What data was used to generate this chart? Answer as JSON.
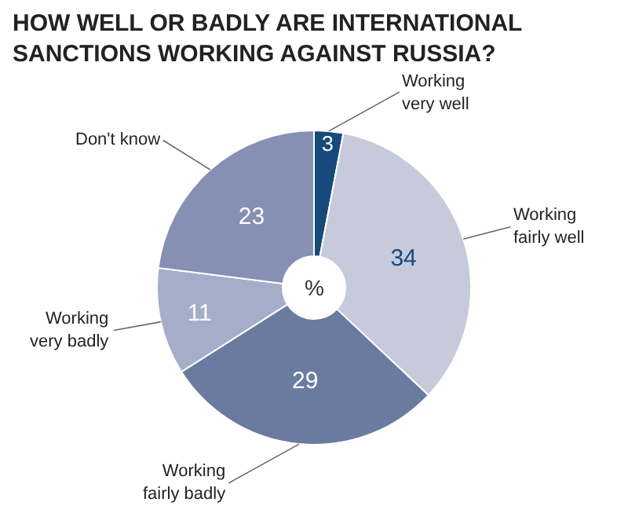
{
  "chart_data": {
    "type": "donut",
    "title": "HOW WELL OR BADLY ARE INTERNATIONAL SANCTIONS WORKING AGAINST RUSSIA?",
    "categories": [
      "Working very well",
      "Working fairly well",
      "Working fairly badly",
      "Working very badly",
      "Don't know"
    ],
    "values": [
      3,
      34,
      29,
      11,
      23
    ],
    "colors": [
      "#164a7a",
      "#c6cadb",
      "#6b7ba0",
      "#a5adc8",
      "#8590b2"
    ],
    "data_labels": true,
    "annotations": [
      "%"
    ],
    "legend": false
  }
}
